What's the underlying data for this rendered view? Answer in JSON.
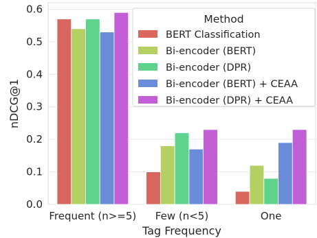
{
  "chart_data": {
    "type": "bar",
    "title": "",
    "xlabel": "Tag Frequency",
    "ylabel": "nDCG@1",
    "ylim": [
      0,
      0.62
    ],
    "yticks": [
      "0.0",
      "0.1",
      "0.2",
      "0.3",
      "0.4",
      "0.5",
      "0.6"
    ],
    "categories": [
      "Frequent (n>=5)",
      "Few (n<5)",
      "One"
    ],
    "legend": {
      "title": "Method",
      "placement": "top-right"
    },
    "grid": "horizontal",
    "series": [
      {
        "name": "BERT Classification",
        "color": "#d9665f",
        "values": [
          0.57,
          0.1,
          0.04
        ]
      },
      {
        "name": "Bi-encoder (BERT)",
        "color": "#b4d063",
        "values": [
          0.54,
          0.18,
          0.12
        ]
      },
      {
        "name": "Bi-encoder (DPR)",
        "color": "#5fd38d",
        "values": [
          0.57,
          0.22,
          0.08
        ]
      },
      {
        "name": "Bi-encoder (BERT) + CEAA",
        "color": "#6a8cd9",
        "values": [
          0.53,
          0.17,
          0.19
        ]
      },
      {
        "name": "Bi-encoder (DPR) + CEAA",
        "color": "#c25fd6",
        "values": [
          0.59,
          0.23,
          0.23
        ]
      }
    ]
  }
}
